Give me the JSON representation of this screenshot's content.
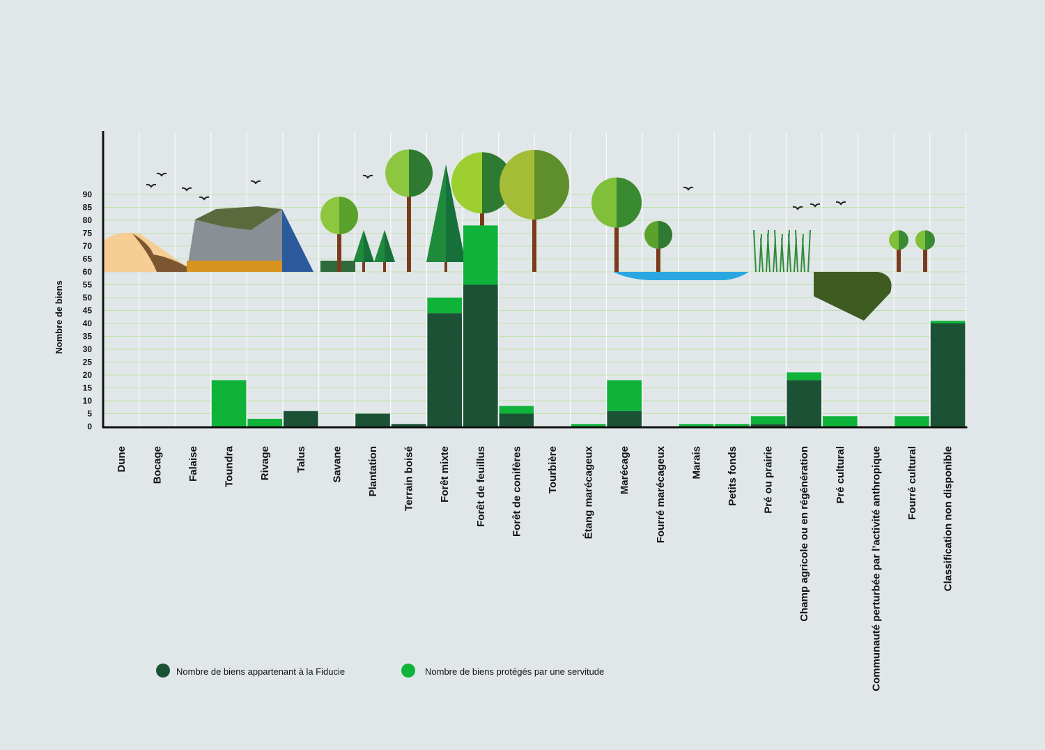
{
  "chart_data": {
    "type": "bar",
    "stacked": true,
    "ylabel": "Nombre de biens",
    "xlabel": "",
    "ylim": [
      0,
      90
    ],
    "yticks": [
      0,
      5,
      10,
      15,
      20,
      25,
      30,
      35,
      40,
      45,
      50,
      55,
      60,
      65,
      70,
      75,
      80,
      85,
      90
    ],
    "grid": true,
    "legend_position": "bottom-left",
    "categories": [
      "Dune",
      "Bocage",
      "Falaise",
      "Toundra",
      "Rivage",
      "Talus",
      "Savane",
      "Plantation",
      "Terrain boisé",
      "Forêt mixte",
      "Forêt de feuillus",
      "Forêt de conifères",
      "Tourbière",
      "Étang marécageux",
      "Marécage",
      "Fourré marécageux",
      "Marais",
      "Petits fonds",
      "Pré ou prairie",
      "Champ agricole ou en régénération",
      "Pré cultural",
      "Communauté perturbée par l’activité anthropique",
      "Fourré cultural",
      "Classification non disponible"
    ],
    "series": [
      {
        "name": "Nombre de biens appartenant à la Fiducie",
        "color": "#1b5235",
        "values": [
          0,
          0,
          0,
          0,
          0,
          6,
          0,
          5,
          1,
          44,
          55,
          5,
          0,
          0,
          6,
          0,
          0,
          0,
          1,
          18,
          0,
          0,
          0,
          40
        ]
      },
      {
        "name": "Nombre de biens protégés par une servitude",
        "color": "#0fb33a",
        "values": [
          0,
          0,
          0,
          18,
          3,
          0,
          0,
          0,
          0,
          6,
          23,
          3,
          0,
          1,
          12,
          0,
          1,
          1,
          3,
          3,
          4,
          0,
          4,
          1
        ]
      }
    ]
  }
}
